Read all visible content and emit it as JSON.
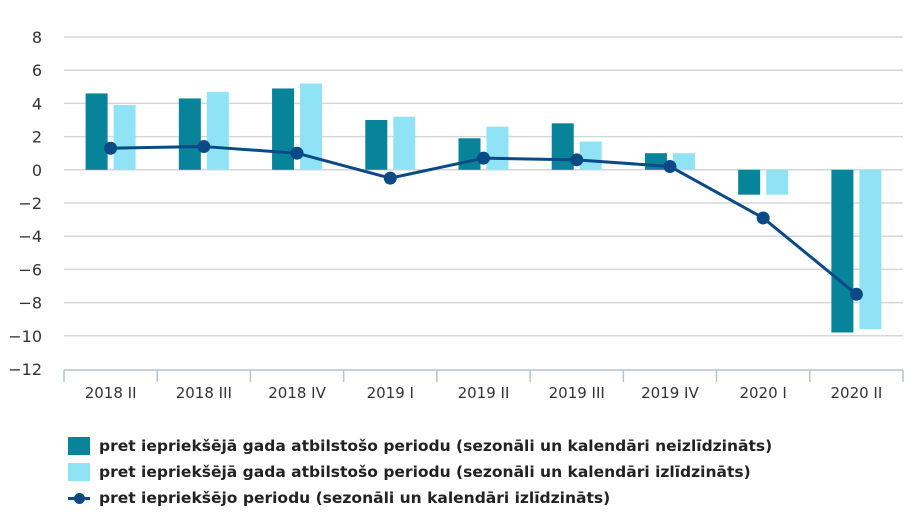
{
  "chart_data": {
    "type": "bar+line",
    "title": "",
    "xlabel": "",
    "ylabel": "",
    "ylim": [
      -12,
      8
    ],
    "yticks": [
      8,
      6,
      4,
      2,
      0,
      -2,
      -4,
      -6,
      -8,
      -10,
      -12
    ],
    "ytick_labels": [
      "8",
      "6",
      "4",
      "2",
      "0",
      "−2",
      "−4",
      "−6",
      "−8",
      "−10",
      "−12"
    ],
    "grid": true,
    "categories": [
      "2018 II",
      "2018 III",
      "2018 IV",
      "2019 I",
      "2019 II",
      "2019 III",
      "2019 IV",
      "2020 I",
      "2020 II"
    ],
    "series": [
      {
        "name": "pret iepriekšējā gada atbilstošo periodu (sezonāli un kalendāri neizlīdzināts)",
        "type": "bar",
        "color": "#08849a",
        "values": [
          4.6,
          4.3,
          4.9,
          3.0,
          1.9,
          2.8,
          1.0,
          -1.5,
          -9.8
        ]
      },
      {
        "name": "pret iepriekšējā gada atbilstošo periodu (sezonāli un kalendāri izlīdzināts)",
        "type": "bar",
        "color": "#90e3f5",
        "values": [
          3.9,
          4.7,
          5.2,
          3.2,
          2.6,
          1.7,
          1.0,
          -1.5,
          -9.6
        ]
      },
      {
        "name": "pret iepriekšējo periodu (sezonāli un kalendāri izlīdzināts)",
        "type": "line",
        "color": "#0c4a85",
        "values": [
          1.3,
          1.4,
          1.0,
          -0.5,
          0.7,
          0.6,
          0.2,
          -2.9,
          -7.5
        ]
      }
    ],
    "legend_position": "bottom-left"
  }
}
